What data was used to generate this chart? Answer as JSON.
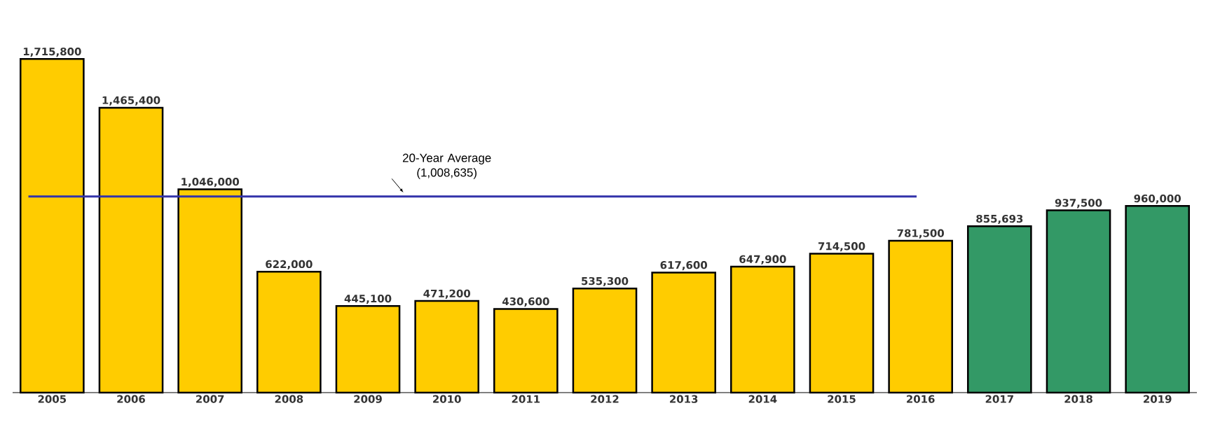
{
  "chart_data": {
    "type": "bar",
    "categories": [
      "2005",
      "2006",
      "2007",
      "2008",
      "2009",
      "2010",
      "2011",
      "2012",
      "2013",
      "2014",
      "2015",
      "2016",
      "2017",
      "2018",
      "2019"
    ],
    "values": [
      1715800,
      1465400,
      1046000,
      622000,
      445100,
      471200,
      430600,
      535300,
      617600,
      647900,
      714500,
      781500,
      855693,
      937500,
      960000
    ],
    "colors": [
      "#ffcc00",
      "#ffcc00",
      "#ffcc00",
      "#ffcc00",
      "#ffcc00",
      "#ffcc00",
      "#ffcc00",
      "#ffcc00",
      "#ffcc00",
      "#ffcc00",
      "#ffcc00",
      "#ffcc00",
      "#339966",
      "#339966",
      "#339966"
    ],
    "value_labels": [
      "1,715,800",
      "1,465,400",
      "1,046,000",
      "622,000",
      "445,100",
      "471,200",
      "430,600",
      "535,300",
      "617,600",
      "647,900",
      "714,500",
      "781,500",
      "855,693",
      "937,500",
      "960,000"
    ],
    "ref_lines": [
      {
        "axis": "y",
        "value": 1008635,
        "label": "20-Year Average (1,008,635)",
        "color": "#3333aa"
      }
    ]
  }
}
